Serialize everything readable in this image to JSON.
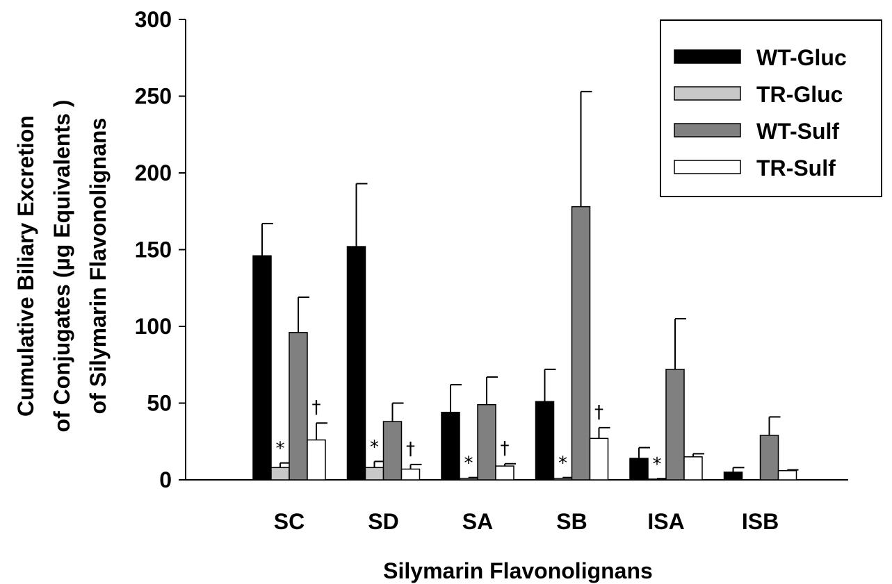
{
  "chart_data": {
    "type": "bar",
    "title": "",
    "xlabel": "Silymarin Flavonolignans",
    "ylabel_lines": [
      "Cumulative Biliary Excretion",
      "of Conjugates (µg Equivalents )",
      "of  Silymarin Flavonolignans"
    ],
    "ylim": [
      0,
      300
    ],
    "yticks": [
      0,
      50,
      100,
      150,
      200,
      250,
      300
    ],
    "categories": [
      "SC",
      "SD",
      "SA",
      "SB",
      "ISA",
      "ISB"
    ],
    "series": [
      {
        "name": "WT-Gluc",
        "color": "#000000",
        "values": [
          146,
          152,
          44,
          51,
          14,
          5
        ],
        "errors": [
          21,
          41,
          18,
          21,
          7,
          3
        ]
      },
      {
        "name": "TR-Gluc",
        "color": "#c8c8c8",
        "values": [
          8,
          8,
          1,
          1,
          0.5,
          0
        ],
        "errors": [
          3,
          4,
          0.5,
          0.5,
          0.3,
          0
        ]
      },
      {
        "name": "WT-Sulf",
        "color": "#808080",
        "values": [
          96,
          38,
          49,
          178,
          72,
          29
        ],
        "errors": [
          23,
          12,
          18,
          75,
          33,
          12
        ]
      },
      {
        "name": "TR-Sulf",
        "color": "#ffffff",
        "values": [
          26,
          7,
          9,
          27,
          15,
          6
        ],
        "errors": [
          11,
          3,
          1.5,
          7,
          2,
          0.5
        ]
      }
    ],
    "annotations": [
      {
        "category": "SC",
        "series": "TR-Gluc",
        "text": "*"
      },
      {
        "category": "SC",
        "series": "TR-Sulf",
        "text": "†"
      },
      {
        "category": "SD",
        "series": "TR-Gluc",
        "text": "*"
      },
      {
        "category": "SD",
        "series": "TR-Sulf",
        "text": "†"
      },
      {
        "category": "SA",
        "series": "TR-Gluc",
        "text": "*"
      },
      {
        "category": "SA",
        "series": "TR-Sulf",
        "text": "†"
      },
      {
        "category": "SB",
        "series": "TR-Gluc",
        "text": "*"
      },
      {
        "category": "SB",
        "series": "TR-Sulf",
        "text": "†"
      },
      {
        "category": "ISA",
        "series": "TR-Gluc",
        "text": "*"
      }
    ],
    "legend_position": "top-right",
    "grid": false
  }
}
